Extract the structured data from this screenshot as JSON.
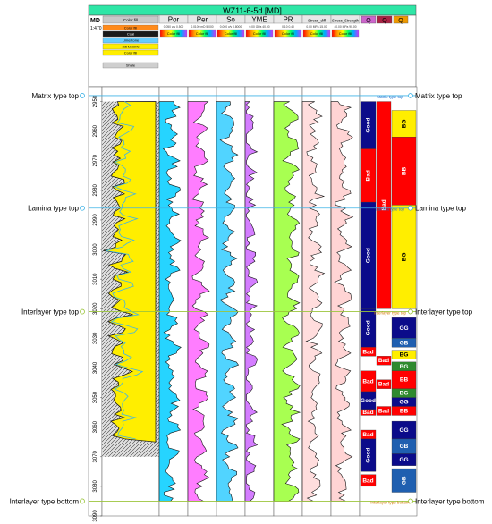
{
  "chart_data": {
    "type": "well-log",
    "title": "WZ11-6-5d [MD]",
    "depth_track": {
      "header": "MD",
      "scale": "1:470",
      "ticks": [
        2950,
        2960,
        2970,
        2980,
        2990,
        3000,
        3010,
        3020,
        3030,
        3040,
        3050,
        3060,
        3070,
        3080,
        3090
      ],
      "range": [
        2945,
        3090
      ]
    },
    "tracks": [
      {
        "name": "",
        "range": "",
        "scale_label": "Color fill"
      },
      {
        "name": "Por",
        "range": "0.050 v/v 0.500",
        "scale_label": "Color fill"
      },
      {
        "name": "Per",
        "range": "0.0100 mD 5.000",
        "scale_label": "Color fill"
      },
      {
        "name": "So",
        "range": "0.000 v/v 0.8000",
        "scale_label": "Color fill"
      },
      {
        "name": "YME",
        "range": "0.00 GPa 40.00",
        "scale_label": "Color fill"
      },
      {
        "name": "PR",
        "range": "0.10 0.40",
        "scale_label": "Color fill"
      },
      {
        "name": "Stress_diff",
        "range": "0.00 MPa 15.00",
        "scale_label": "Color fill"
      },
      {
        "name": "Stress_Strength",
        "range": "40.00 MPa 90.00",
        "scale_label": "Color fill"
      }
    ],
    "lithology_legend": [
      "Color fill",
      "Coal",
      "Limestone",
      "Sandstone",
      "Color fill",
      "Shale"
    ],
    "class_track_headers": [
      "Q",
      "Q",
      "Q"
    ],
    "boundaries": [
      {
        "label": "Matrix type top",
        "depth": 2948
      },
      {
        "label": "Lamina type top",
        "depth": 2986
      },
      {
        "label": "Interlayer type top",
        "depth": 3021
      },
      {
        "label": "Interlayer type bottom",
        "depth": 3085
      }
    ],
    "quality_intervals": [
      {
        "label": "Good",
        "from": 2950,
        "to": 2966,
        "color": "#0b0b8a"
      },
      {
        "label": "Bad",
        "from": 2966,
        "to": 2984,
        "color": "#ff0000"
      },
      {
        "label": "Good",
        "from": 2984,
        "to": 3020,
        "color": "#0b0b8a"
      },
      {
        "label": "Good",
        "from": 3020,
        "to": 3033,
        "color": "#0b0b8a"
      },
      {
        "label": "Bad",
        "from": 3033,
        "to": 3036,
        "color": "#ff0000"
      },
      {
        "label": "Bad",
        "from": 3041,
        "to": 3048,
        "color": "#ff0000"
      },
      {
        "label": "Good",
        "from": 3048,
        "to": 3054,
        "color": "#0b0b8a"
      },
      {
        "label": "Bad",
        "from": 3054,
        "to": 3056,
        "color": "#ff0000"
      },
      {
        "label": "Bad",
        "from": 3061,
        "to": 3064,
        "color": "#ff0000"
      },
      {
        "label": "Good",
        "from": 3064,
        "to": 3075,
        "color": "#0b0b8a"
      },
      {
        "label": "Bad",
        "from": 3076,
        "to": 3080,
        "color": "#ff0000"
      }
    ],
    "middle_intervals": [
      {
        "label": "Bad",
        "from": 2950,
        "to": 3020,
        "color": "#ff0000"
      },
      {
        "label": "Bad",
        "from": 3036,
        "to": 3039,
        "color": "#ff0000"
      },
      {
        "label": "Bad",
        "from": 3044,
        "to": 3047,
        "color": "#ff0000"
      },
      {
        "label": "Bad",
        "from": 3053,
        "to": 3056,
        "color": "#ff0000"
      }
    ],
    "type_intervals": [
      {
        "label": "BG",
        "from": 2953,
        "to": 2962,
        "color": "#ffee00"
      },
      {
        "label": "BB",
        "from": 2962,
        "to": 2985,
        "color": "#ff0000"
      },
      {
        "label": "BG",
        "from": 2985,
        "to": 3020,
        "color": "#ffee00"
      },
      {
        "label": "GG",
        "from": 3023,
        "to": 3030,
        "color": "#0b0b8a"
      },
      {
        "label": "GB",
        "from": 3030,
        "to": 3033,
        "color": "#1f5fb0"
      },
      {
        "label": "BG",
        "from": 3034,
        "to": 3037,
        "color": "#ffee00"
      },
      {
        "label": "BG",
        "from": 3038,
        "to": 3041,
        "color": "#2f8a2f"
      },
      {
        "label": "BB",
        "from": 3041,
        "to": 3047,
        "color": "#ff0000"
      },
      {
        "label": "BG",
        "from": 3047,
        "to": 3050,
        "color": "#2f8a2f"
      },
      {
        "label": "GG",
        "from": 3050,
        "to": 3053,
        "color": "#0b0b8a"
      },
      {
        "label": "BB",
        "from": 3053,
        "to": 3056,
        "color": "#ff0000"
      },
      {
        "label": "GG",
        "from": 3058,
        "to": 3064,
        "color": "#0b0b8a"
      },
      {
        "label": "GB",
        "from": 3064,
        "to": 3069,
        "color": "#1f5fb0"
      },
      {
        "label": "GG",
        "from": 3069,
        "to": 3073,
        "color": "#0b0b8a"
      },
      {
        "label": "GB",
        "from": 3074,
        "to": 3082,
        "color": "#1f5fb0"
      }
    ],
    "colors": {
      "boundary_line": "#3fb3e6",
      "boundary_text": "#000000",
      "interlayer_line": "#9bc43c",
      "title_bar": "#2ee6a6",
      "header_gray": "#d0d0d0"
    }
  }
}
